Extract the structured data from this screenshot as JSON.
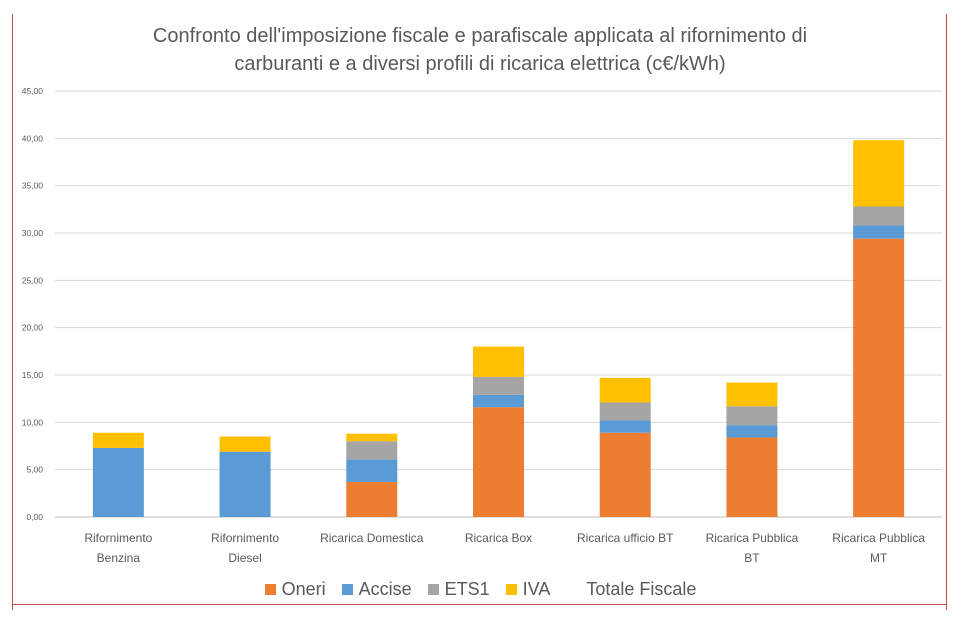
{
  "chart_data": {
    "type": "bar",
    "stacked": true,
    "title_lines": [
      "Confronto dell'imposizione fiscale e parafiscale applicata al rifornimento di",
      "carburanti e a diversi profili di ricarica elettrica (c€/kWh)"
    ],
    "categories": [
      [
        "Rifornimento",
        "Benzina"
      ],
      [
        "Rifornimento",
        "Diesel"
      ],
      [
        "Ricarica Domestica"
      ],
      [
        "Ricarica Box"
      ],
      [
        "Ricarica ufficio BT"
      ],
      [
        "Ricarica Pubblica",
        "BT"
      ],
      [
        "Ricarica Pubblica",
        "MT"
      ]
    ],
    "series": [
      {
        "name": "Oneri",
        "color": "#ed7d31",
        "values": [
          0,
          0,
          3.7,
          11.6,
          8.9,
          8.4,
          29.4
        ]
      },
      {
        "name": "Accise",
        "color": "#5b9bd5",
        "values": [
          7.3,
          6.9,
          2.4,
          1.3,
          1.3,
          1.3,
          1.4
        ]
      },
      {
        "name": "ETS1",
        "color": "#a5a5a5",
        "values": [
          0,
          0,
          1.9,
          1.9,
          1.9,
          2.0,
          2.0
        ]
      },
      {
        "name": "IVA",
        "color": "#ffc000",
        "values": [
          1.6,
          1.6,
          0.8,
          3.2,
          2.6,
          2.5,
          7.0
        ]
      }
    ],
    "extra_legend_entry": "Totale Fiscale",
    "ylim": [
      0,
      45
    ],
    "yticks": [
      "0,00",
      "5,00",
      "10,00",
      "15,00",
      "20,00",
      "25,00",
      "30,00",
      "35,00",
      "40,00",
      "45,00"
    ],
    "grid": true,
    "legend_position": "bottom"
  }
}
